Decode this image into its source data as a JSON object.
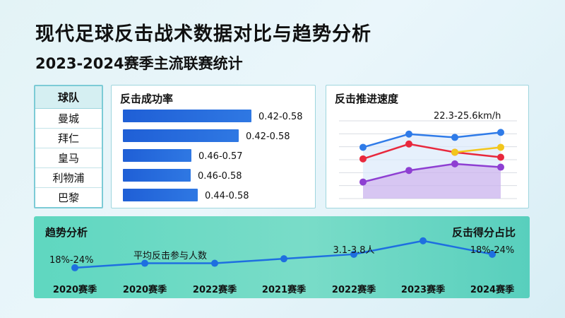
{
  "title": "现代足球反击战术数据对比与趋势分析",
  "subtitle": "2023-2024赛季主流联赛统计",
  "teams": {
    "header": "球队",
    "rows": [
      "曼城",
      "拜仁",
      "皇马",
      "利物浦",
      "巴黎"
    ]
  },
  "chart_data": [
    {
      "type": "bar",
      "title": "反击成功率",
      "categories": [
        "曼城",
        "拜仁",
        "皇马",
        "利物浦",
        "巴黎"
      ],
      "ranges": [
        [
          0.42,
          0.58
        ],
        [
          0.42,
          0.58
        ],
        [
          0.46,
          0.57
        ],
        [
          0.46,
          0.58
        ],
        [
          0.44,
          0.58
        ]
      ],
      "labels": [
        "0.42-0.58",
        "0.42-0.58",
        "0.46-0.57",
        "0.46-0.58",
        "0.44-0.58"
      ],
      "colors": {
        "bar": "#2f78e3"
      }
    },
    {
      "type": "line",
      "title": "反击推进速度",
      "annotation": "22.3-25.6km/h",
      "x_points": 4,
      "series": [
        {
          "color": "#2f7be8",
          "values": [
            24.6,
            25.4,
            25.2,
            25.5
          ]
        },
        {
          "color": "#e8283d",
          "values": [
            23.9,
            24.8,
            24.3,
            24.0
          ]
        },
        {
          "color": "#f2c61c",
          "values": [
            null,
            null,
            24.3,
            24.6
          ]
        },
        {
          "color": "#8e3fd2",
          "values": [
            22.5,
            23.2,
            23.6,
            23.4
          ]
        }
      ],
      "ylim": [
        21.5,
        26.2
      ],
      "fill_color": "#c9b3ee"
    },
    {
      "type": "line",
      "title": "趋势分析",
      "right_title": "反击得分占比",
      "categories": [
        "2020赛季",
        "2020赛季",
        "2022赛季",
        "2021赛季",
        "2022赛季",
        "2023赛季",
        "2024赛季"
      ],
      "values": [
        0.18,
        0.19,
        0.19,
        0.2,
        0.21,
        0.24,
        0.21
      ],
      "ylim": [
        0.15,
        0.26
      ],
      "annotations": [
        "18%-24%",
        "平均反击参与人数",
        "3.1-3.8人",
        "18%-24%"
      ],
      "colors": {
        "line": "#1e6fe0"
      }
    }
  ]
}
